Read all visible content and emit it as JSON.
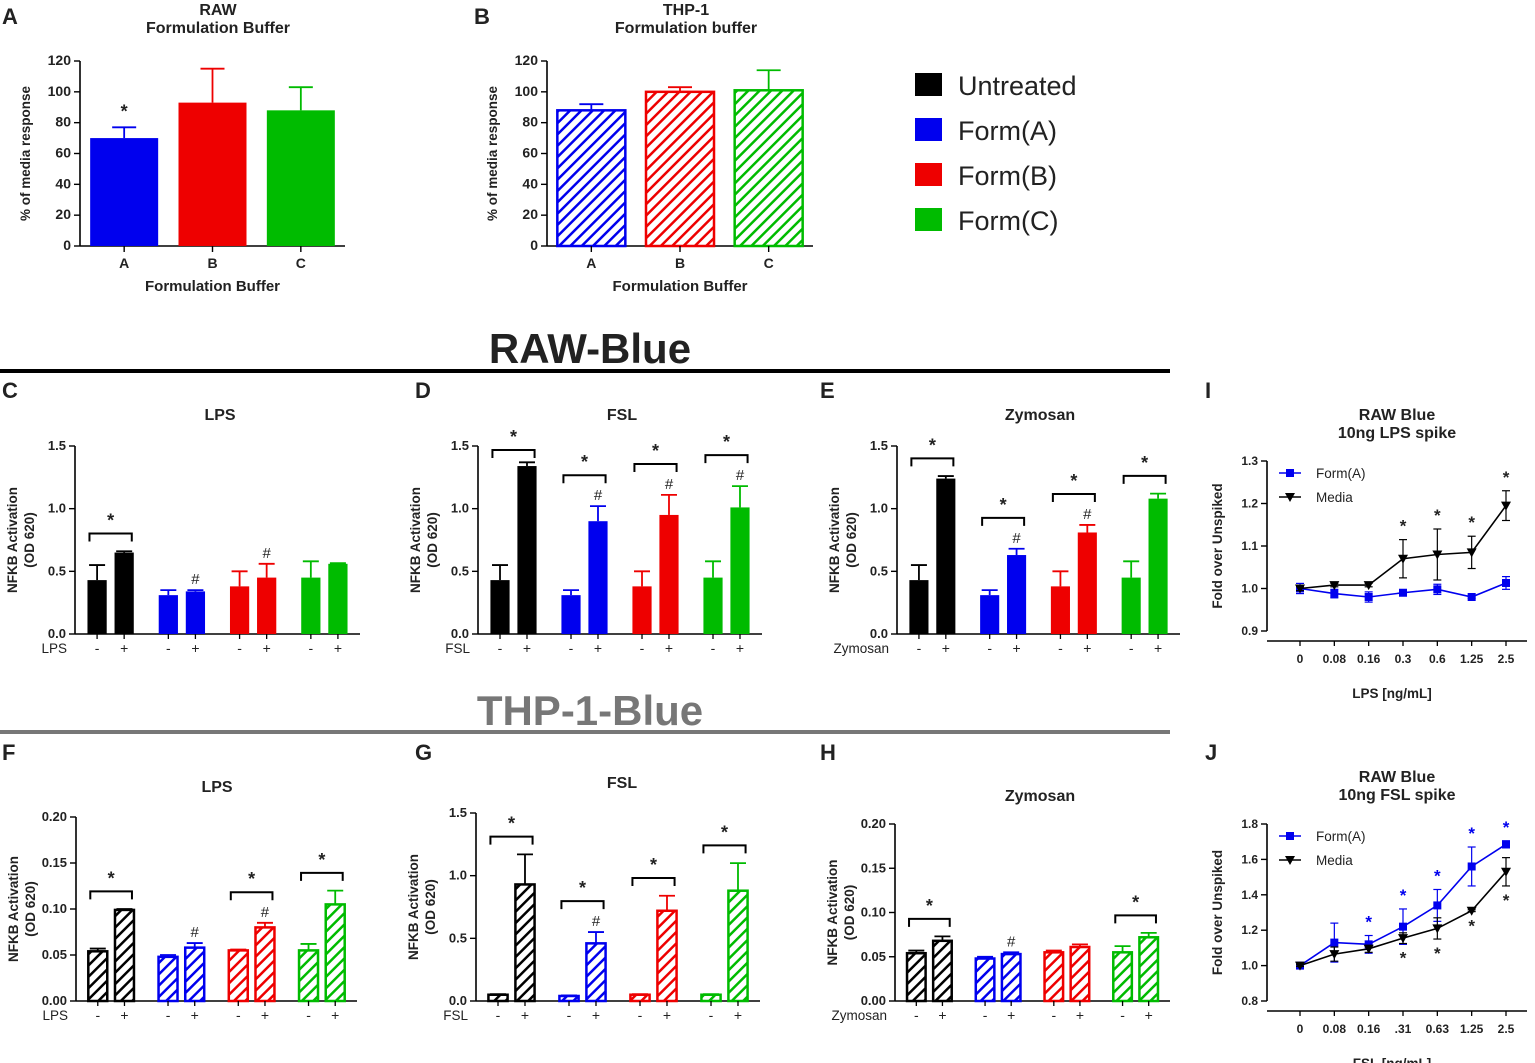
{
  "colors": {
    "untreated": "#000000",
    "formA": "#0000ee",
    "formB": "#ee0000",
    "formC": "#00bb00",
    "section_raw": "#222222",
    "section_thp": "#777777"
  },
  "sections": {
    "raw": "RAW-Blue",
    "thp": "THP-1-Blue"
  },
  "legend": {
    "items": [
      {
        "label": "Untreated",
        "color_key": "untreated"
      },
      {
        "label": "Form(A)",
        "color_key": "formA"
      },
      {
        "label": "Form(B)",
        "color_key": "formB"
      },
      {
        "label": "Form(C)",
        "color_key": "formC"
      }
    ]
  },
  "chart_data": [
    {
      "id": "A",
      "type": "bar",
      "panel_letter": "A",
      "title": [
        "RAW",
        "Formulation Buffer"
      ],
      "xlabel": "Formulation Buffer",
      "ylabel": "% of media response",
      "ylim": [
        0,
        120
      ],
      "yticks": [
        "0",
        "20",
        "40",
        "60",
        "80",
        "100",
        "120"
      ],
      "categories": [
        "A",
        "B",
        "C"
      ],
      "values": [
        70,
        93,
        88
      ],
      "errors": [
        7,
        22,
        15
      ],
      "color_keys": [
        "formA",
        "formB",
        "formC"
      ],
      "hatched": false,
      "marks": [
        "*",
        "",
        ""
      ]
    },
    {
      "id": "B",
      "type": "bar",
      "panel_letter": "B",
      "title": [
        "THP-1",
        "Formulation buffer"
      ],
      "xlabel": "Formulation Buffer",
      "ylabel": "% of media response",
      "ylim": [
        0,
        120
      ],
      "yticks": [
        "0",
        "20",
        "40",
        "60",
        "80",
        "100",
        "120"
      ],
      "categories": [
        "A",
        "B",
        "C"
      ],
      "values": [
        88,
        100,
        101
      ],
      "errors": [
        4,
        3,
        13
      ],
      "color_keys": [
        "formA",
        "formB",
        "formC"
      ],
      "hatched": true,
      "marks": [
        "",
        "",
        ""
      ]
    },
    {
      "id": "C",
      "type": "bar",
      "panel_letter": "C",
      "title": [
        "LPS"
      ],
      "ylabel": [
        "NFKB Activation",
        "(OD 620)"
      ],
      "ylim": [
        0,
        1.5
      ],
      "yticks": [
        "0.0",
        "0.5",
        "1.0",
        "1.5"
      ],
      "treatment_label": "LPS",
      "signs": [
        "-",
        "+"
      ],
      "hatched": false,
      "groups": [
        {
          "color_key": "untreated",
          "values": [
            0.43,
            0.65
          ],
          "errors": [
            0.12,
            0.01
          ],
          "bracket": "*",
          "hash": ""
        },
        {
          "color_key": "formA",
          "values": [
            0.31,
            0.34
          ],
          "errors": [
            0.04,
            0.01
          ],
          "bracket": "",
          "hash": "#"
        },
        {
          "color_key": "formB",
          "values": [
            0.38,
            0.45
          ],
          "errors": [
            0.12,
            0.11
          ],
          "bracket": "",
          "hash": "#"
        },
        {
          "color_key": "formC",
          "values": [
            0.45,
            0.56
          ],
          "errors": [
            0.13,
            0.005
          ],
          "bracket": "",
          "hash": ""
        }
      ]
    },
    {
      "id": "D",
      "type": "bar",
      "panel_letter": "D",
      "title": [
        "FSL"
      ],
      "ylabel": [
        "NFKB Activation",
        "(OD 620)"
      ],
      "ylim": [
        0,
        1.5
      ],
      "yticks": [
        "0.0",
        "0.5",
        "1.0",
        "1.5"
      ],
      "treatment_label": "FSL",
      "signs": [
        "-",
        "+"
      ],
      "hatched": false,
      "groups": [
        {
          "color_key": "untreated",
          "values": [
            0.43,
            1.34
          ],
          "errors": [
            0.12,
            0.03
          ],
          "bracket": "*",
          "hash": ""
        },
        {
          "color_key": "formA",
          "values": [
            0.31,
            0.9
          ],
          "errors": [
            0.04,
            0.12
          ],
          "bracket": "*",
          "hash": "#"
        },
        {
          "color_key": "formB",
          "values": [
            0.38,
            0.95
          ],
          "errors": [
            0.12,
            0.16
          ],
          "bracket": "*",
          "hash": "#"
        },
        {
          "color_key": "formC",
          "values": [
            0.45,
            1.01
          ],
          "errors": [
            0.13,
            0.17
          ],
          "bracket": "*",
          "hash": "#"
        }
      ]
    },
    {
      "id": "E",
      "type": "bar",
      "panel_letter": "E",
      "title": [
        "Zymosan"
      ],
      "ylabel": [
        "NFKB Activation",
        "(OD 620)"
      ],
      "ylim": [
        0,
        1.5
      ],
      "yticks": [
        "0.0",
        "0.5",
        "1.0",
        "1.5"
      ],
      "treatment_label": "Zymosan",
      "signs": [
        "-",
        "+"
      ],
      "hatched": false,
      "groups": [
        {
          "color_key": "untreated",
          "values": [
            0.43,
            1.24
          ],
          "errors": [
            0.12,
            0.02
          ],
          "bracket": "*",
          "hash": ""
        },
        {
          "color_key": "formA",
          "values": [
            0.31,
            0.63
          ],
          "errors": [
            0.04,
            0.05
          ],
          "bracket": "*",
          "hash": "#"
        },
        {
          "color_key": "formB",
          "values": [
            0.38,
            0.81
          ],
          "errors": [
            0.12,
            0.06
          ],
          "bracket": "*",
          "hash": "#"
        },
        {
          "color_key": "formC",
          "values": [
            0.45,
            1.08
          ],
          "errors": [
            0.13,
            0.04
          ],
          "bracket": "*",
          "hash": ""
        }
      ]
    },
    {
      "id": "F",
      "type": "bar",
      "panel_letter": "F",
      "title": [
        "LPS"
      ],
      "ylabel": [
        "NFKB Activation",
        "(OD 620)"
      ],
      "ylim": [
        0,
        0.2
      ],
      "yticks": [
        "0.00",
        "0.05",
        "0.10",
        "0.15",
        "0.20"
      ],
      "treatment_label": "LPS",
      "signs": [
        "-",
        "+"
      ],
      "hatched": true,
      "groups": [
        {
          "color_key": "untreated",
          "values": [
            0.054,
            0.099
          ],
          "errors": [
            0.003,
            0.001
          ],
          "bracket": "*",
          "hash": ""
        },
        {
          "color_key": "formA",
          "values": [
            0.048,
            0.058
          ],
          "errors": [
            0.002,
            0.005
          ],
          "bracket": "",
          "hash": "#"
        },
        {
          "color_key": "formB",
          "values": [
            0.055,
            0.08
          ],
          "errors": [
            0.001,
            0.005
          ],
          "bracket": "*",
          "hash": "#"
        },
        {
          "color_key": "formC",
          "values": [
            0.055,
            0.105
          ],
          "errors": [
            0.007,
            0.015
          ],
          "bracket": "*",
          "hash": ""
        }
      ]
    },
    {
      "id": "G",
      "type": "bar",
      "panel_letter": "G",
      "title": [
        "FSL"
      ],
      "ylabel": [
        "NFKB Activation",
        "(OD 620)"
      ],
      "ylim": [
        0,
        1.5
      ],
      "yticks": [
        "0.0",
        "0.5",
        "1.0",
        "1.5"
      ],
      "treatment_label": "FSL",
      "signs": [
        "-",
        "+"
      ],
      "hatched": true,
      "groups": [
        {
          "color_key": "untreated",
          "values": [
            0.05,
            0.93
          ],
          "errors": [
            0.005,
            0.24
          ],
          "bracket": "*",
          "hash": ""
        },
        {
          "color_key": "formA",
          "values": [
            0.04,
            0.46
          ],
          "errors": [
            0.005,
            0.09
          ],
          "bracket": "*",
          "hash": "#"
        },
        {
          "color_key": "formB",
          "values": [
            0.05,
            0.72
          ],
          "errors": [
            0.005,
            0.12
          ],
          "bracket": "*",
          "hash": ""
        },
        {
          "color_key": "formC",
          "values": [
            0.05,
            0.88
          ],
          "errors": [
            0.005,
            0.22
          ],
          "bracket": "*",
          "hash": ""
        }
      ]
    },
    {
      "id": "H",
      "type": "bar",
      "panel_letter": "H",
      "title": [
        "Zymosan"
      ],
      "ylabel": [
        "NFKB Activation",
        "(OD 620)"
      ],
      "ylim": [
        0,
        0.2
      ],
      "yticks": [
        "0.00",
        "0.05",
        "0.10",
        "0.15",
        "0.20"
      ],
      "treatment_label": "Zymosan",
      "signs": [
        "-",
        "+"
      ],
      "hatched": true,
      "groups": [
        {
          "color_key": "untreated",
          "values": [
            0.054,
            0.068
          ],
          "errors": [
            0.003,
            0.005
          ],
          "bracket": "*",
          "hash": ""
        },
        {
          "color_key": "formA",
          "values": [
            0.048,
            0.053
          ],
          "errors": [
            0.002,
            0.002
          ],
          "bracket": "",
          "hash": "#"
        },
        {
          "color_key": "formB",
          "values": [
            0.055,
            0.061
          ],
          "errors": [
            0.002,
            0.003
          ],
          "bracket": "",
          "hash": ""
        },
        {
          "color_key": "formC",
          "values": [
            0.055,
            0.072
          ],
          "errors": [
            0.007,
            0.005
          ],
          "bracket": "*",
          "hash": ""
        }
      ]
    },
    {
      "id": "I",
      "type": "line",
      "panel_letter": "I",
      "title": [
        "RAW Blue",
        "10ng  LPS spike"
      ],
      "xlabel": "LPS [ng/mL]",
      "ylabel": "Fold over Unspiked",
      "ylim": [
        0.9,
        1.3
      ],
      "yticks": [
        "0.9",
        "1.0",
        "1.1",
        "1.2",
        "1.3"
      ],
      "x": [
        "0",
        "0.08",
        "0.16",
        "0.3",
        "0.6",
        "1.25",
        "2.5"
      ],
      "series": [
        {
          "name": "Form(A)",
          "color_key": "formA",
          "marker": "square",
          "values": [
            1.0,
            0.988,
            0.98,
            0.99,
            0.998,
            0.98,
            1.013
          ],
          "errors": [
            0.012,
            0.01,
            0.012,
            0.004,
            0.012,
            0.003,
            0.015
          ],
          "marks": [
            "",
            "",
            "",
            "",
            "",
            "",
            ""
          ]
        },
        {
          "name": "Media",
          "color_key": "untreated",
          "marker": "triangle",
          "values": [
            1.0,
            1.008,
            1.008,
            1.07,
            1.08,
            1.085,
            1.195
          ],
          "errors": [
            0.005,
            0.004,
            0.004,
            0.045,
            0.06,
            0.038,
            0.035
          ],
          "marks": [
            "",
            "",
            "",
            "*",
            "*",
            "*",
            "*"
          ]
        }
      ]
    },
    {
      "id": "J",
      "type": "line",
      "panel_letter": "J",
      "title": [
        "RAW Blue",
        "10ng FSL spike"
      ],
      "xlabel": "FSL [ng/mL]",
      "ylabel": "Fold over Unspiked",
      "ylim": [
        0.8,
        1.8
      ],
      "yticks": [
        "0.8",
        "1.0",
        "1.2",
        "1.4",
        "1.6",
        "1.8"
      ],
      "x": [
        "0",
        "0.08",
        "0.16",
        ".31",
        "0.63",
        "1.25",
        "2.5"
      ],
      "series": [
        {
          "name": "Form(A)",
          "color_key": "formA",
          "marker": "square",
          "values": [
            1.0,
            1.13,
            1.12,
            1.22,
            1.34,
            1.56,
            1.685
          ],
          "errors": [
            0.005,
            0.11,
            0.05,
            0.1,
            0.09,
            0.11,
            0.02
          ],
          "marks": [
            "",
            "",
            "*",
            "*",
            "*",
            "*",
            "*"
          ]
        },
        {
          "name": "Media",
          "color_key": "untreated",
          "marker": "triangle",
          "values": [
            1.0,
            1.065,
            1.095,
            1.155,
            1.21,
            1.31,
            1.53
          ],
          "errors": [
            0.005,
            0.04,
            0.02,
            0.03,
            0.06,
            0.005,
            0.08
          ],
          "marks": [
            "",
            "",
            "",
            "*",
            "*",
            "*",
            "*"
          ]
        }
      ]
    }
  ]
}
